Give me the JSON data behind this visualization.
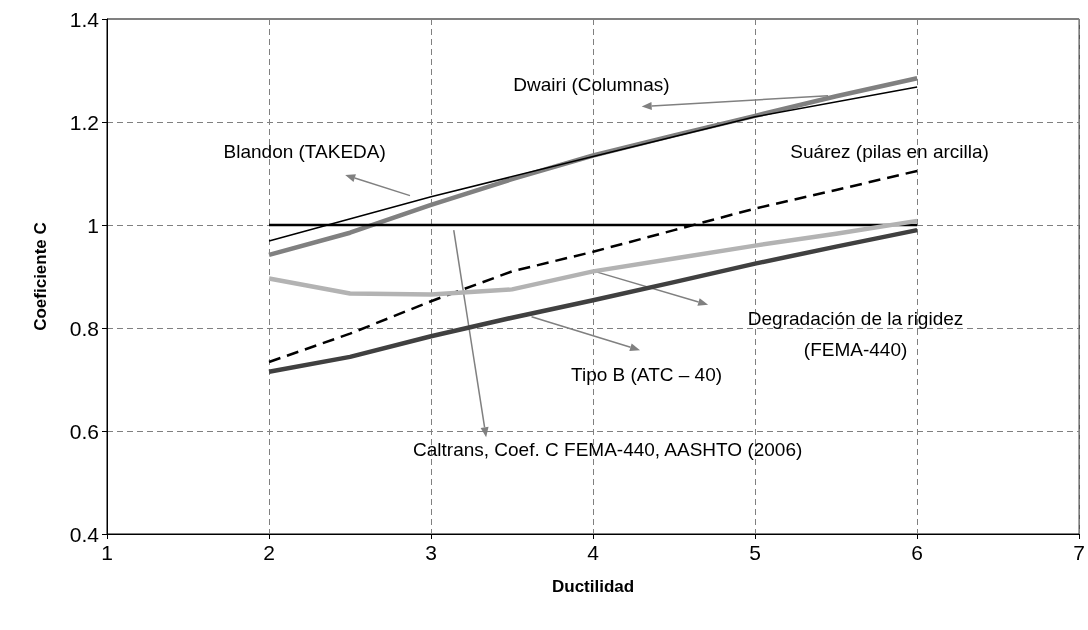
{
  "chart_data": {
    "type": "line",
    "xlabel": "Ductilidad",
    "ylabel": "Coeficiente C",
    "xlim": [
      1,
      7
    ],
    "xticks": [
      1,
      2,
      3,
      4,
      5,
      6,
      7
    ],
    "ylim": [
      0.4,
      1.4
    ],
    "yticks": [
      0.4,
      0.6,
      0.8,
      1,
      1.2,
      1.4
    ],
    "grid": true,
    "marker": "none",
    "series": [
      {
        "color": "#808080",
        "x": [
          2,
          2.5,
          3,
          3.5,
          4,
          4.5,
          5,
          5.5,
          6
        ],
        "values": [
          0.942,
          0.985,
          1.039,
          1.089,
          1.135,
          1.174,
          1.212,
          1.25,
          1.285
        ]
      },
      {
        "color": "#000000",
        "x": [
          2,
          3,
          4,
          5,
          6
        ],
        "values": [
          0.969,
          1.055,
          1.133,
          1.21,
          1.268
        ]
      },
      {
        "color": "#000000",
        "line_style": "dashed",
        "x": [
          2,
          2.5,
          3,
          3.5,
          4,
          4.5,
          5,
          5.5,
          6
        ],
        "values": [
          0.734,
          0.789,
          0.852,
          0.91,
          0.948,
          0.99,
          1.032,
          1.068,
          1.105
        ]
      },
      {
        "color": "#000000",
        "x": [
          2,
          6
        ],
        "values": [
          1,
          1
        ]
      },
      {
        "color": "#b3b3b3",
        "x": [
          2,
          2.5,
          3,
          3.5,
          4,
          4.5,
          5,
          5.5,
          6
        ],
        "values": [
          0.896,
          0.867,
          0.865,
          0.875,
          0.91,
          0.935,
          0.96,
          0.983,
          1.008
        ]
      },
      {
        "color": "#404040",
        "x": [
          2,
          2.5,
          3,
          3.5,
          4,
          4.5,
          5,
          5.5,
          6
        ],
        "values": [
          0.715,
          0.744,
          0.784,
          0.82,
          0.854,
          0.889,
          0.925,
          0.958,
          0.99
        ]
      }
    ],
    "annotations": [
      "Dwairi (Columnas)",
      "Blandon (TAKEDA)",
      "Suárez (pilas en arcilla)",
      "Caltrans, Coef. C FEMA-440, AASHTO (2006)",
      "Degradación de la rigidez\n(FEMA-440)",
      "Tipo B (ATC – 40)"
    ]
  }
}
